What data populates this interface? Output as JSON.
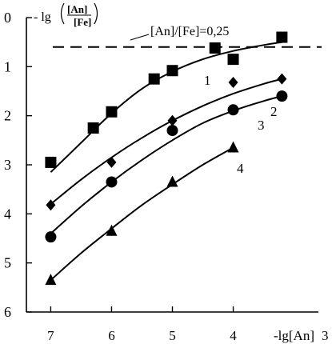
{
  "chart_data": {
    "type": "scatter",
    "title": "",
    "xlabel": "-lg[An]",
    "ylabel_parts": {
      "prefix": "- lg",
      "numerator": "[An]",
      "denominator": "[Fe]"
    },
    "xlim": [
      7.4,
      2.6
    ],
    "ylim": [
      0,
      6
    ],
    "y_inverted": true,
    "x_ticks": [
      7,
      6,
      5,
      4
    ],
    "x_tick_labels": [
      "7",
      "6",
      "5",
      "4"
    ],
    "x_end_label": "3",
    "y_ticks": [
      0,
      1,
      2,
      3,
      4,
      5,
      6
    ],
    "y_tick_labels": [
      "0",
      "1",
      "2",
      "3",
      "4",
      "5",
      "6"
    ],
    "grid": false,
    "reference_line": {
      "y": 0.6,
      "style": "dashed",
      "label": "[An]/[Fe]=0,25"
    },
    "series": [
      {
        "name": "1",
        "marker": "square",
        "points": [
          [
            7.0,
            2.95
          ],
          [
            6.3,
            2.25
          ],
          [
            6.0,
            1.92
          ],
          [
            5.3,
            1.25
          ],
          [
            5.0,
            1.08
          ],
          [
            4.3,
            0.62
          ],
          [
            4.0,
            0.85
          ],
          [
            3.2,
            0.4
          ]
        ],
        "fit": [
          [
            7.0,
            3.15
          ],
          [
            6.5,
            2.55
          ],
          [
            6.0,
            1.95
          ],
          [
            5.5,
            1.45
          ],
          [
            5.0,
            1.1
          ],
          [
            4.5,
            0.85
          ],
          [
            4.0,
            0.68
          ],
          [
            3.5,
            0.56
          ],
          [
            3.2,
            0.5
          ]
        ]
      },
      {
        "name": "2",
        "marker": "diamond",
        "points": [
          [
            7.0,
            3.82
          ],
          [
            6.0,
            2.95
          ],
          [
            5.0,
            2.1
          ],
          [
            4.0,
            1.32
          ],
          [
            3.2,
            1.25
          ]
        ],
        "fit": [
          [
            7.0,
            3.8
          ],
          [
            6.5,
            3.3
          ],
          [
            6.0,
            2.85
          ],
          [
            5.5,
            2.45
          ],
          [
            5.0,
            2.1
          ],
          [
            4.5,
            1.8
          ],
          [
            4.0,
            1.55
          ],
          [
            3.5,
            1.35
          ],
          [
            3.2,
            1.25
          ]
        ]
      },
      {
        "name": "3",
        "marker": "circle",
        "points": [
          [
            7.0,
            4.47
          ],
          [
            6.0,
            3.35
          ],
          [
            5.0,
            2.3
          ],
          [
            4.0,
            1.88
          ],
          [
            3.2,
            1.6
          ]
        ],
        "fit": [
          [
            7.0,
            4.4
          ],
          [
            6.5,
            3.85
          ],
          [
            6.0,
            3.35
          ],
          [
            5.5,
            2.9
          ],
          [
            5.0,
            2.5
          ],
          [
            4.5,
            2.15
          ],
          [
            4.0,
            1.9
          ],
          [
            3.5,
            1.7
          ],
          [
            3.2,
            1.6
          ]
        ]
      },
      {
        "name": "4",
        "marker": "triangle",
        "points": [
          [
            7.0,
            5.35
          ],
          [
            6.0,
            4.35
          ],
          [
            5.0,
            3.35
          ],
          [
            4.0,
            2.65
          ]
        ],
        "fit": [
          [
            7.0,
            5.35
          ],
          [
            6.5,
            4.8
          ],
          [
            6.0,
            4.3
          ],
          [
            5.5,
            3.82
          ],
          [
            5.0,
            3.4
          ],
          [
            4.5,
            3.0
          ],
          [
            4.0,
            2.65
          ]
        ]
      }
    ]
  }
}
